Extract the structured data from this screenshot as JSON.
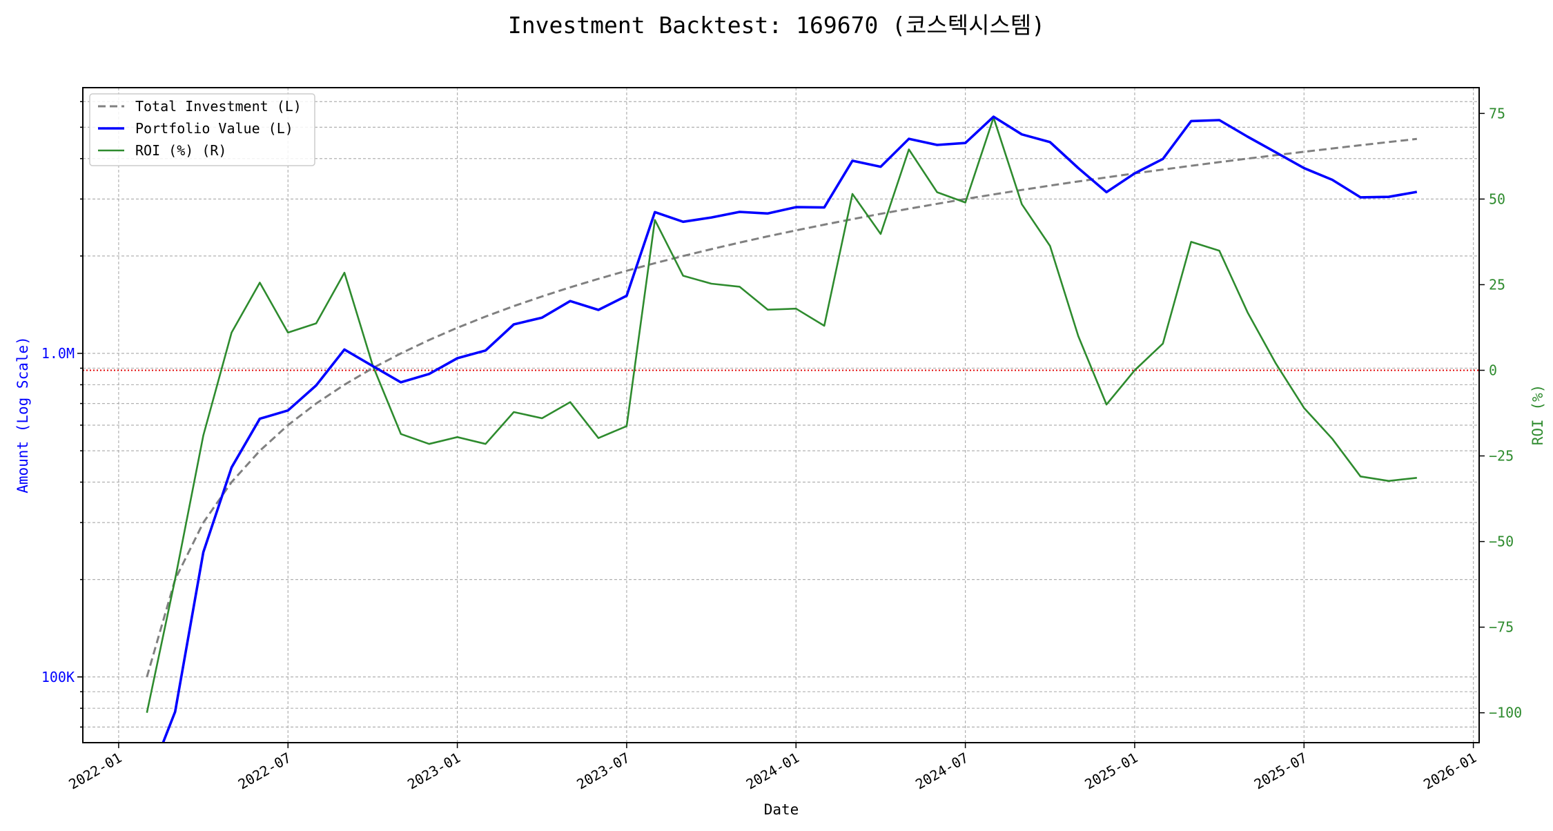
{
  "chart_data": {
    "type": "line",
    "title": "Investment Backtest: 169670 (코스텍시스템)",
    "xlabel": "Date",
    "ylabel_left": "Amount (Log Scale)",
    "ylabel_right": "ROI (%)",
    "left_scale": "log",
    "left_ylim": [
      62700,
      6600000
    ],
    "right_ylim": [
      -108.7,
      82.6
    ],
    "xlim": [
      "2021-12",
      "2026-01"
    ],
    "grid": true,
    "legend_position": "top-left",
    "x_tick_labels": [
      "2022-01",
      "2022-07",
      "2023-01",
      "2023-07",
      "2024-01",
      "2024-07",
      "2025-01",
      "2025-07",
      "2026-01"
    ],
    "left_tick_labels": [
      {
        "value": 100000,
        "label": "100K"
      },
      {
        "value": 1000000,
        "label": "1.0M"
      }
    ],
    "right_tick_labels": [
      75,
      50,
      25,
      0,
      -25,
      -50,
      -75,
      -100
    ],
    "reference_line": {
      "axis": "right",
      "value": 0,
      "color": "#e00000",
      "style": "dotted"
    },
    "colors": {
      "investment": "#808080",
      "portfolio": "#0000ff",
      "roi": "#2e8b2e",
      "left_axis": "#0000ff",
      "right_axis": "#2e8b2e"
    },
    "dates": [
      "2022-02",
      "2022-03",
      "2022-04",
      "2022-05",
      "2022-06",
      "2022-07",
      "2022-08",
      "2022-09",
      "2022-10",
      "2022-11",
      "2022-12",
      "2023-01",
      "2023-02",
      "2023-03",
      "2023-04",
      "2023-05",
      "2023-06",
      "2023-07",
      "2023-08",
      "2023-09",
      "2023-10",
      "2023-11",
      "2023-12",
      "2024-01",
      "2024-02",
      "2024-03",
      "2024-04",
      "2024-05",
      "2024-06",
      "2024-07",
      "2024-08",
      "2024-09",
      "2024-10",
      "2024-11",
      "2024-12",
      "2025-01",
      "2025-02",
      "2025-03",
      "2025-04",
      "2025-05",
      "2025-06",
      "2025-07",
      "2025-08",
      "2025-09",
      "2025-10",
      "2025-11"
    ],
    "series": [
      {
        "name": "Total Investment (L)",
        "axis": "left",
        "style": "dashed",
        "values": [
          100000,
          200000,
          300000,
          400000,
          500000,
          600000,
          700000,
          800000,
          900000,
          1000000,
          1100000,
          1200000,
          1300000,
          1400000,
          1500000,
          1600000,
          1700000,
          1800000,
          1900000,
          2000000,
          2100000,
          2200000,
          2300000,
          2400000,
          2500000,
          2600000,
          2700000,
          2800000,
          2900000,
          3000000,
          3100000,
          3200000,
          3300000,
          3400000,
          3500000,
          3600000,
          3700000,
          3800000,
          3900000,
          4000000,
          4100000,
          4200000,
          4300000,
          4400000,
          4500000,
          4600000
        ]
      },
      {
        "name": "Portfolio Value (L)",
        "axis": "left",
        "style": "solid",
        "values": [
          0,
          78000,
          243000,
          444000,
          628000,
          666000,
          796000,
          1028000,
          914000,
          814000,
          864000,
          966000,
          1021000,
          1229000,
          1290000,
          1451000,
          1363000,
          1507000,
          2734000,
          2552000,
          2631000,
          2737000,
          2707000,
          2832000,
          2825000,
          3939000,
          3775000,
          4606000,
          4408000,
          4470000,
          5388000,
          4752000,
          4498000,
          3740000,
          3150000,
          3600000,
          3989000,
          5225000,
          5261000,
          4676000,
          4182000,
          3738000,
          3440000,
          3036000,
          3047000,
          3156000
        ]
      },
      {
        "name": "ROI (%) (R)",
        "axis": "right",
        "style": "solid",
        "values": [
          -100,
          -61,
          -19,
          11,
          25.6,
          11,
          13.7,
          28.5,
          1.5,
          -18.6,
          -21.5,
          -19.5,
          -21.5,
          -12.2,
          -14,
          -9.3,
          -19.8,
          -16.3,
          43.9,
          27.6,
          25.3,
          24.4,
          17.7,
          18,
          13,
          51.5,
          39.8,
          64.5,
          52,
          49,
          73.8,
          48.5,
          36.3,
          10,
          -10,
          0,
          7.8,
          37.5,
          34.9,
          16.9,
          2,
          -11,
          -20,
          -31,
          -32.3,
          -31.4
        ]
      }
    ]
  }
}
